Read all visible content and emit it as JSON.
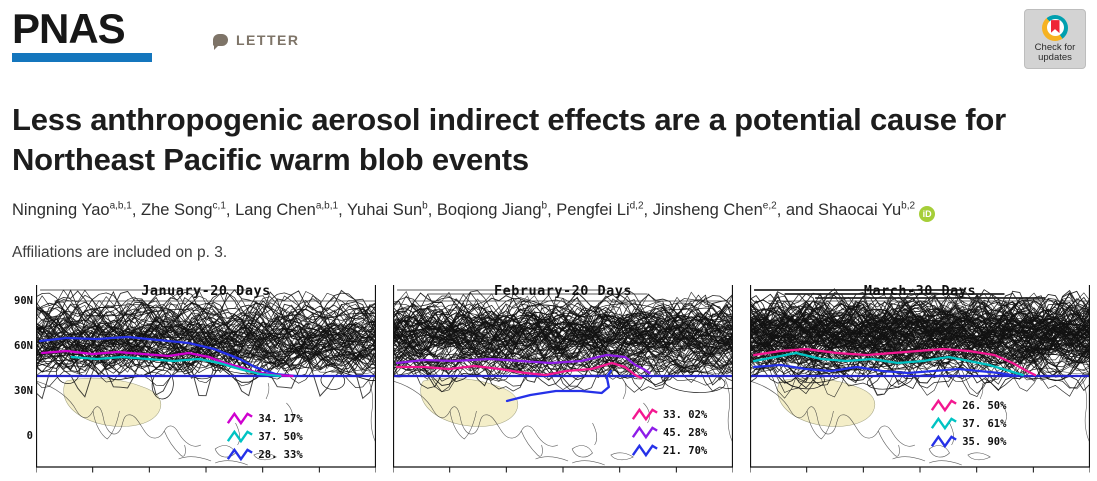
{
  "masthead": {
    "logo": "PNAS",
    "article_type": "LETTER",
    "check_updates": {
      "line1": "Check for",
      "line2": "updates"
    }
  },
  "title": "Less anthropogenic aerosol indirect effects are a potential cause for Northeast Pacific warm blob events",
  "authors": {
    "list": [
      {
        "name": "Ningning Yao",
        "sup": "a,b,1",
        "sep": ", "
      },
      {
        "name": "Zhe Song",
        "sup": "c,1",
        "sep": ", "
      },
      {
        "name": "Lang Chen",
        "sup": "a,b,1",
        "sep": ", "
      },
      {
        "name": "Yuhai Sun",
        "sup": "b",
        "sep": ", "
      },
      {
        "name": "Boqiong Jiang",
        "sup": "b",
        "sep": ", "
      },
      {
        "name": "Pengfei Li",
        "sup": "d,2",
        "sep": ", "
      },
      {
        "name": "Jinsheng Chen",
        "sup": "e,2",
        "sep": ", and "
      },
      {
        "name": "Shaocai Yu",
        "sup": "b,2",
        "sep": ""
      }
    ],
    "orcid_icon": "iD"
  },
  "affiliations_note": "Affiliations are included on p. 3.",
  "figure": {
    "y_axis_labels": [
      "90N",
      "60N",
      "30N",
      "0"
    ],
    "reference_line_color": "#2525cf",
    "panels": [
      {
        "title": "January-20 Days",
        "legend": [
          {
            "color": "#cf00cf",
            "label": "34. 17%"
          },
          {
            "color": "#00c3c3",
            "label": "37. 50%"
          },
          {
            "color": "#2531e8",
            "label": "28. 33%"
          }
        ]
      },
      {
        "title": "February-20 Days",
        "legend": [
          {
            "color": "#f31790",
            "label": "33. 02%"
          },
          {
            "color": "#8d1ce8",
            "label": "45. 28%"
          },
          {
            "color": "#2531e8",
            "label": "21. 70%"
          }
        ]
      },
      {
        "title": "March-30 Days",
        "legend": [
          {
            "color": "#f31790",
            "label": "26. 50%"
          },
          {
            "color": "#00c3c3",
            "label": "37. 61%"
          },
          {
            "color": "#2531e8",
            "label": "35. 90%"
          }
        ]
      }
    ]
  }
}
